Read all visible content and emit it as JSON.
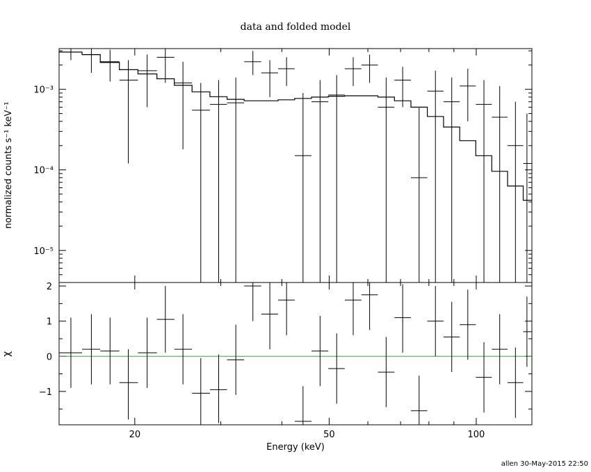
{
  "chart_data": [
    {
      "type": "scatter",
      "panel": "spectrum",
      "title": "data and folded model",
      "ylabel": "normalized counts s⁻¹ keV⁻¹",
      "xscale": "log",
      "yscale": "log",
      "xlim": [
        14,
        130
      ],
      "ylim": [
        4e-06,
        0.0032
      ],
      "y_ticks": [
        {
          "value": 0.001,
          "label": "10⁻³"
        },
        {
          "value": 0.0001,
          "label": "10⁻⁴"
        },
        {
          "value": 1e-05,
          "label": "10⁻⁵"
        }
      ],
      "model": {
        "x": [
          14,
          15.6,
          17.0,
          18.6,
          20.3,
          22.2,
          24.1,
          26.2,
          28.5,
          30.9,
          33.5,
          36.3,
          39.3,
          42.5,
          46.0,
          49.8,
          53.8,
          58.2,
          62.9,
          68.0,
          73.5,
          79.4,
          85.7,
          92.5,
          99.8,
          107.6,
          115.9,
          124.8,
          130
        ],
        "y": [
          0.0029,
          0.0027,
          0.00215,
          0.00175,
          0.00155,
          0.00135,
          0.00112,
          0.00093,
          0.00081,
          0.00075,
          0.00072,
          0.00072,
          0.00074,
          0.00077,
          0.0008,
          0.00082,
          0.00083,
          0.00083,
          0.0008,
          0.00072,
          0.0006,
          0.00046,
          0.00034,
          0.00023,
          0.00015,
          9.6e-05,
          6.3e-05,
          4.2e-05,
          3.5e-05
        ]
      },
      "points": [
        {
          "x": 14.8,
          "xl": 14.0,
          "xh": 15.6,
          "y": 0.0029,
          "yl": 0.0023,
          "yh": 0.0032
        },
        {
          "x": 16.3,
          "xl": 15.6,
          "xh": 17.0,
          "y": 0.0027,
          "yl": 0.0016,
          "yh": 0.0032
        },
        {
          "x": 17.8,
          "xl": 17.0,
          "xh": 18.6,
          "y": 0.0022,
          "yl": 0.00125,
          "yh": 0.0031
        },
        {
          "x": 19.4,
          "xl": 18.6,
          "xh": 20.3,
          "y": 0.0013,
          "yl": 0.00012,
          "yh": 0.0023
        },
        {
          "x": 21.2,
          "xl": 20.3,
          "xh": 22.2,
          "y": 0.0017,
          "yl": 0.0006,
          "yh": 0.0027
        },
        {
          "x": 23.1,
          "xl": 22.2,
          "xh": 24.1,
          "y": 0.0025,
          "yl": 0.0012,
          "yh": 0.0035
        },
        {
          "x": 25.1,
          "xl": 24.1,
          "xh": 26.2,
          "y": 0.0012,
          "yl": 0.00018,
          "yh": 0.0022
        },
        {
          "x": 27.3,
          "xl": 26.2,
          "xh": 28.5,
          "y": 0.00055,
          "yl": 4e-06,
          "yh": 0.0012
        },
        {
          "x": 29.7,
          "xl": 28.5,
          "xh": 30.9,
          "y": 0.00065,
          "yl": 4e-06,
          "yh": 0.0013
        },
        {
          "x": 32.2,
          "xl": 30.9,
          "xh": 33.5,
          "y": 0.00068,
          "yl": 4e-06,
          "yh": 0.0014
        },
        {
          "x": 34.9,
          "xl": 33.5,
          "xh": 36.3,
          "y": 0.0022,
          "yl": 0.0015,
          "yh": 0.003
        },
        {
          "x": 37.8,
          "xl": 36.3,
          "xh": 39.3,
          "y": 0.0016,
          "yl": 0.0008,
          "yh": 0.0023
        },
        {
          "x": 40.9,
          "xl": 39.3,
          "xh": 42.5,
          "y": 0.0018,
          "yl": 0.0011,
          "yh": 0.0025
        },
        {
          "x": 44.2,
          "xl": 42.5,
          "xh": 46.0,
          "y": 0.00015,
          "yl": 4e-06,
          "yh": 0.0009
        },
        {
          "x": 47.9,
          "xl": 46.0,
          "xh": 49.8,
          "y": 0.0007,
          "yl": 4e-06,
          "yh": 0.0013
        },
        {
          "x": 51.8,
          "xl": 49.8,
          "xh": 53.8,
          "y": 0.00085,
          "yl": 4e-06,
          "yh": 0.0015
        },
        {
          "x": 56.0,
          "xl": 53.8,
          "xh": 58.2,
          "y": 0.0018,
          "yl": 0.0011,
          "yh": 0.0025
        },
        {
          "x": 60.5,
          "xl": 58.2,
          "xh": 62.9,
          "y": 0.002,
          "yl": 0.0012,
          "yh": 0.0027
        },
        {
          "x": 65.4,
          "xl": 62.9,
          "xh": 68.0,
          "y": 0.0006,
          "yl": 4e-06,
          "yh": 0.0014
        },
        {
          "x": 70.7,
          "xl": 68.0,
          "xh": 73.5,
          "y": 0.0013,
          "yl": 0.0006,
          "yh": 0.0019
        },
        {
          "x": 76.4,
          "xl": 73.5,
          "xh": 79.4,
          "y": 8e-05,
          "yl": 4e-06,
          "yh": 0.0006
        },
        {
          "x": 82.5,
          "xl": 79.4,
          "xh": 85.7,
          "y": 0.00095,
          "yl": 4e-06,
          "yh": 0.0017
        },
        {
          "x": 89.1,
          "xl": 85.7,
          "xh": 92.5,
          "y": 0.0007,
          "yl": 4e-06,
          "yh": 0.0014
        },
        {
          "x": 96.1,
          "xl": 92.5,
          "xh": 99.8,
          "y": 0.0011,
          "yl": 0.0004,
          "yh": 0.0018
        },
        {
          "x": 103.7,
          "xl": 99.8,
          "xh": 107.6,
          "y": 0.00065,
          "yl": 4e-06,
          "yh": 0.0013
        },
        {
          "x": 111.7,
          "xl": 107.6,
          "xh": 115.9,
          "y": 0.00045,
          "yl": 4e-06,
          "yh": 0.0011
        },
        {
          "x": 120.3,
          "xl": 115.9,
          "xh": 124.8,
          "y": 0.0002,
          "yl": 4e-06,
          "yh": 0.0007
        },
        {
          "x": 127.0,
          "xl": 124.8,
          "xh": 130.0,
          "y": 0.00012,
          "yl": 4e-06,
          "yh": 0.0005
        }
      ]
    },
    {
      "type": "scatter",
      "panel": "residuals",
      "xlabel": "Energy (keV)",
      "ylabel": "χ",
      "xscale": "log",
      "xlim": [
        14,
        130
      ],
      "ylim": [
        -1.95,
        2.1
      ],
      "x_ticks": [
        {
          "value": 20,
          "label": "20"
        },
        {
          "value": 50,
          "label": "50"
        },
        {
          "value": 100,
          "label": "100"
        }
      ],
      "y_ticks": [
        {
          "value": 2,
          "label": "2"
        },
        {
          "value": 1,
          "label": "1"
        },
        {
          "value": 0,
          "label": "0"
        },
        {
          "value": -1,
          "label": "−1"
        }
      ],
      "zero_line": {
        "y": 0,
        "color": "#00cc00"
      },
      "points": [
        {
          "x": 14.8,
          "xl": 14.0,
          "xh": 15.6,
          "y": 0.1,
          "yl": -0.9,
          "yh": 1.1
        },
        {
          "x": 16.3,
          "xl": 15.6,
          "xh": 17.0,
          "y": 0.2,
          "yl": -0.8,
          "yh": 1.2
        },
        {
          "x": 17.8,
          "xl": 17.0,
          "xh": 18.6,
          "y": 0.15,
          "yl": -0.8,
          "yh": 1.1
        },
        {
          "x": 19.4,
          "xl": 18.6,
          "xh": 20.3,
          "y": -0.75,
          "yl": -1.8,
          "yh": 0.2
        },
        {
          "x": 21.2,
          "xl": 20.3,
          "xh": 22.2,
          "y": 0.1,
          "yl": -0.9,
          "yh": 1.1
        },
        {
          "x": 23.1,
          "xl": 22.2,
          "xh": 24.1,
          "y": 1.05,
          "yl": 0.1,
          "yh": 2.0
        },
        {
          "x": 25.1,
          "xl": 24.1,
          "xh": 26.2,
          "y": 0.2,
          "yl": -0.8,
          "yh": 1.2
        },
        {
          "x": 27.3,
          "xl": 26.2,
          "xh": 28.5,
          "y": -1.05,
          "yl": -1.95,
          "yh": -0.05
        },
        {
          "x": 29.7,
          "xl": 28.5,
          "xh": 30.9,
          "y": -0.95,
          "yl": -1.9,
          "yh": 0.05
        },
        {
          "x": 32.2,
          "xl": 30.9,
          "xh": 33.5,
          "y": -0.1,
          "yl": -1.1,
          "yh": 0.9
        },
        {
          "x": 34.9,
          "xl": 33.5,
          "xh": 36.3,
          "y": 2.0,
          "yl": 1.0,
          "yh": 2.1
        },
        {
          "x": 37.8,
          "xl": 36.3,
          "xh": 39.3,
          "y": 1.2,
          "yl": 0.2,
          "yh": 2.1
        },
        {
          "x": 40.9,
          "xl": 39.3,
          "xh": 42.5,
          "y": 1.6,
          "yl": 0.6,
          "yh": 2.1
        },
        {
          "x": 44.2,
          "xl": 42.5,
          "xh": 46.0,
          "y": -1.85,
          "yl": -1.95,
          "yh": -0.85
        },
        {
          "x": 47.9,
          "xl": 46.0,
          "xh": 49.8,
          "y": 0.15,
          "yl": -0.85,
          "yh": 1.15
        },
        {
          "x": 51.8,
          "xl": 49.8,
          "xh": 53.8,
          "y": -0.35,
          "yl": -1.35,
          "yh": 0.65
        },
        {
          "x": 56.0,
          "xl": 53.8,
          "xh": 58.2,
          "y": 1.6,
          "yl": 0.6,
          "yh": 2.1
        },
        {
          "x": 60.5,
          "xl": 58.2,
          "xh": 62.9,
          "y": 1.75,
          "yl": 0.75,
          "yh": 2.1
        },
        {
          "x": 65.4,
          "xl": 62.9,
          "xh": 68.0,
          "y": -0.45,
          "yl": -1.45,
          "yh": 0.55
        },
        {
          "x": 70.7,
          "xl": 68.0,
          "xh": 73.5,
          "y": 1.1,
          "yl": 0.1,
          "yh": 2.05
        },
        {
          "x": 76.4,
          "xl": 73.5,
          "xh": 79.4,
          "y": -1.55,
          "yl": -1.95,
          "yh": -0.55
        },
        {
          "x": 82.5,
          "xl": 79.4,
          "xh": 85.7,
          "y": 1.0,
          "yl": 0.0,
          "yh": 2.0
        },
        {
          "x": 89.1,
          "xl": 85.7,
          "xh": 92.5,
          "y": 0.55,
          "yl": -0.45,
          "yh": 1.55
        },
        {
          "x": 96.1,
          "xl": 92.5,
          "xh": 99.8,
          "y": 0.9,
          "yl": -0.1,
          "yh": 1.9
        },
        {
          "x": 103.7,
          "xl": 99.8,
          "xh": 107.6,
          "y": -0.6,
          "yl": -1.6,
          "yh": 0.4
        },
        {
          "x": 111.7,
          "xl": 107.6,
          "xh": 115.9,
          "y": 0.2,
          "yl": -0.8,
          "yh": 1.2
        },
        {
          "x": 120.3,
          "xl": 115.9,
          "xh": 124.8,
          "y": -0.75,
          "yl": -1.75,
          "yh": 0.25
        },
        {
          "x": 127.0,
          "xl": 124.8,
          "xh": 130.0,
          "y": 0.7,
          "yl": -0.3,
          "yh": 1.7
        }
      ]
    }
  ],
  "footer": "allen 30-May-2015 22:50",
  "colors": {
    "data": "#000000",
    "model": "#000000",
    "zero_line": "#00cc00"
  }
}
